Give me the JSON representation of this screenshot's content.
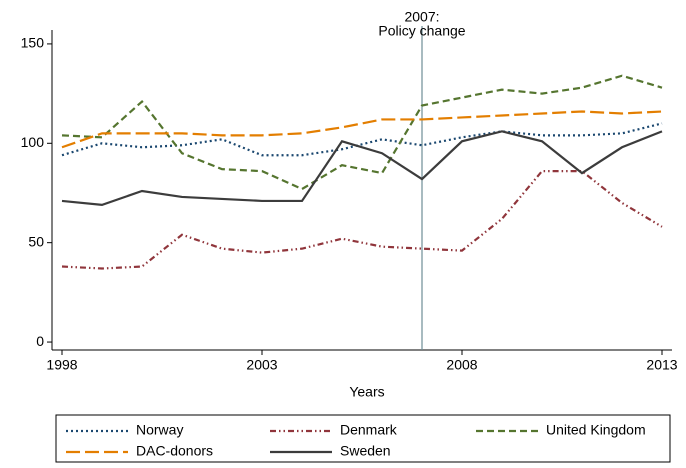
{
  "chart_data": {
    "type": "line",
    "x": [
      1998,
      1999,
      2000,
      2001,
      2002,
      2003,
      2004,
      2005,
      2006,
      2007,
      2008,
      2009,
      2010,
      2011,
      2012,
      2013
    ],
    "series": [
      {
        "name": "Norway",
        "color": "#1a476f",
        "dash": "2,3",
        "values": [
          94,
          100,
          98,
          99,
          102,
          94,
          94,
          97,
          102,
          99,
          103,
          106,
          104,
          104,
          105,
          110
        ]
      },
      {
        "name": "Denmark",
        "color": "#90353b",
        "dash": "6,3,1.5,3,1.5,3",
        "values": [
          38,
          37,
          38,
          54,
          47,
          45,
          47,
          52,
          48,
          47,
          46,
          62,
          86,
          86,
          70,
          58
        ]
      },
      {
        "name": "United Kingdom",
        "color": "#55752f",
        "dash": "7,4",
        "values": [
          104,
          103,
          121,
          95,
          87,
          86,
          77,
          89,
          85,
          119,
          123,
          127,
          125,
          128,
          134,
          128
        ]
      },
      {
        "name": "DAC-donors",
        "color": "#e37e00",
        "dash": "14,5",
        "values": [
          98,
          105,
          105,
          105,
          104,
          104,
          105,
          108,
          112,
          112,
          113,
          114,
          115,
          116,
          115,
          116
        ]
      },
      {
        "name": "Sweden",
        "color": "#3c3c3c",
        "dash": "none",
        "values": [
          71,
          69,
          76,
          73,
          72,
          71,
          71,
          101,
          95,
          82,
          101,
          106,
          101,
          85,
          98,
          106
        ]
      }
    ],
    "xlabel": "Years",
    "xlim": [
      1997.75,
      2013.25
    ],
    "xticks": [
      1998,
      2003,
      2008,
      2013
    ],
    "ylim": [
      -4,
      157
    ],
    "yticks": [
      0,
      50,
      100,
      150
    ],
    "annotation": {
      "x": 2007,
      "color": "#6e8e96",
      "lines": [
        "2007:",
        "Policy change"
      ]
    },
    "legend": "bottom"
  }
}
